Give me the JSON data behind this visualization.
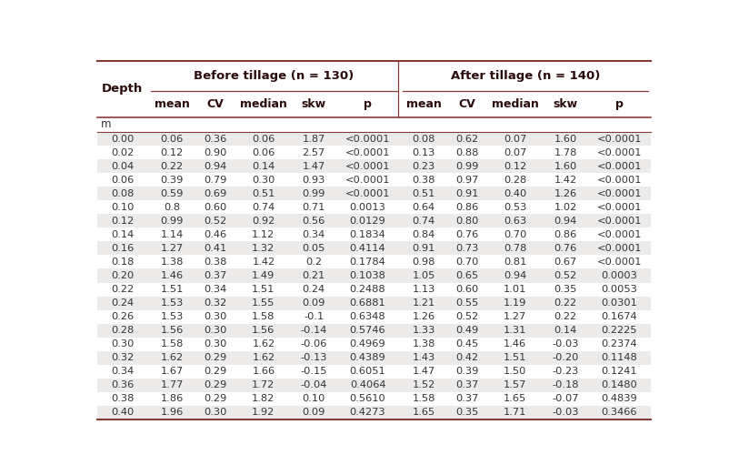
{
  "title_before": "Before tillage (n = 130)",
  "title_after": "After tillage (n = 140)",
  "unit_row": "m",
  "row_odd_bg": "#EDEAEA",
  "row_even_bg": "#FFFFFF",
  "data": [
    [
      "0.00",
      "0.06",
      "0.36",
      "0.06",
      "1.87",
      "<0.0001",
      "0.08",
      "0.62",
      "0.07",
      "1.60",
      "<0.0001"
    ],
    [
      "0.02",
      "0.12",
      "0.90",
      "0.06",
      "2.57",
      "<0.0001",
      "0.13",
      "0.88",
      "0.07",
      "1.78",
      "<0.0001"
    ],
    [
      "0.04",
      "0.22",
      "0.94",
      "0.14",
      "1.47",
      "<0.0001",
      "0.23",
      "0.99",
      "0.12",
      "1.60",
      "<0.0001"
    ],
    [
      "0.06",
      "0.39",
      "0.79",
      "0.30",
      "0.93",
      "<0.0001",
      "0.38",
      "0.97",
      "0.28",
      "1.42",
      "<0.0001"
    ],
    [
      "0.08",
      "0.59",
      "0.69",
      "0.51",
      "0.99",
      "<0.0001",
      "0.51",
      "0.91",
      "0.40",
      "1.26",
      "<0.0001"
    ],
    [
      "0.10",
      "0.8",
      "0.60",
      "0.74",
      "0.71",
      "0.0013",
      "0.64",
      "0.86",
      "0.53",
      "1.02",
      "<0.0001"
    ],
    [
      "0.12",
      "0.99",
      "0.52",
      "0.92",
      "0.56",
      "0.0129",
      "0.74",
      "0.80",
      "0.63",
      "0.94",
      "<0.0001"
    ],
    [
      "0.14",
      "1.14",
      "0.46",
      "1.12",
      "0.34",
      "0.1834",
      "0.84",
      "0.76",
      "0.70",
      "0.86",
      "<0.0001"
    ],
    [
      "0.16",
      "1.27",
      "0.41",
      "1.32",
      "0.05",
      "0.4114",
      "0.91",
      "0.73",
      "0.78",
      "0.76",
      "<0.0001"
    ],
    [
      "0.18",
      "1.38",
      "0.38",
      "1.42",
      "0.2",
      "0.1784",
      "0.98",
      "0.70",
      "0.81",
      "0.67",
      "<0.0001"
    ],
    [
      "0.20",
      "1.46",
      "0.37",
      "1.49",
      "0.21",
      "0.1038",
      "1.05",
      "0.65",
      "0.94",
      "0.52",
      "0.0003"
    ],
    [
      "0.22",
      "1.51",
      "0.34",
      "1.51",
      "0.24",
      "0.2488",
      "1.13",
      "0.60",
      "1.01",
      "0.35",
      "0.0053"
    ],
    [
      "0.24",
      "1.53",
      "0.32",
      "1.55",
      "0.09",
      "0.6881",
      "1.21",
      "0.55",
      "1.19",
      "0.22",
      "0.0301"
    ],
    [
      "0.26",
      "1.53",
      "0.30",
      "1.58",
      "-0.1",
      "0.6348",
      "1.26",
      "0.52",
      "1.27",
      "0.22",
      "0.1674"
    ],
    [
      "0.28",
      "1.56",
      "0.30",
      "1.56",
      "-0.14",
      "0.5746",
      "1.33",
      "0.49",
      "1.31",
      "0.14",
      "0.2225"
    ],
    [
      "0.30",
      "1.58",
      "0.30",
      "1.62",
      "-0.06",
      "0.4969",
      "1.38",
      "0.45",
      "1.46",
      "-0.03",
      "0.2374"
    ],
    [
      "0.32",
      "1.62",
      "0.29",
      "1.62",
      "-0.13",
      "0.4389",
      "1.43",
      "0.42",
      "1.51",
      "-0.20",
      "0.1148"
    ],
    [
      "0.34",
      "1.67",
      "0.29",
      "1.66",
      "-0.15",
      "0.6051",
      "1.47",
      "0.39",
      "1.50",
      "-0.23",
      "0.1241"
    ],
    [
      "0.36",
      "1.77",
      "0.29",
      "1.72",
      "-0.04",
      "0.4064",
      "1.52",
      "0.37",
      "1.57",
      "-0.18",
      "0.1480"
    ],
    [
      "0.38",
      "1.86",
      "0.29",
      "1.82",
      "0.10",
      "0.5610",
      "1.58",
      "0.37",
      "1.65",
      "-0.07",
      "0.4839"
    ],
    [
      "0.40",
      "1.96",
      "0.30",
      "1.92",
      "0.09",
      "0.4273",
      "1.65",
      "0.35",
      "1.71",
      "-0.03",
      "0.3466"
    ]
  ],
  "line_color": "#8B3A3A",
  "header_text_color": "#2B0A0A",
  "data_text_color": "#333333"
}
